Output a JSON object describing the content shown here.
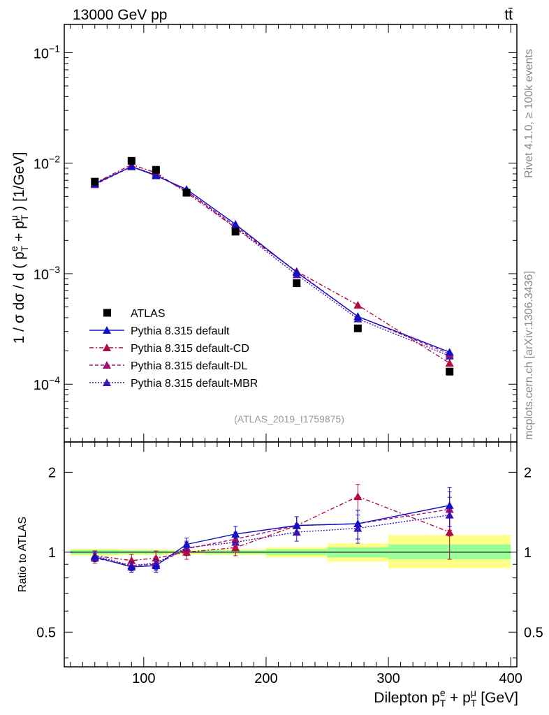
{
  "header": {
    "left_label": "13000 GeV pp",
    "right_label": "tt̄"
  },
  "side_labels": {
    "rivet": "Rivet 4.1.0, ≥ 100k events",
    "mcplots": "mcplots.cern.ch [arXiv:1306.3436]"
  },
  "analysis_tag": "(ATLAS_2019_I1759875)",
  "colors": {
    "atlas": "#000000",
    "default": "#1010c8",
    "cd": "#b40a3c",
    "dl": "#a0106e",
    "mbr": "#3c14b4",
    "band_inner": "#99ff99",
    "band_outer": "#ffff88"
  },
  "chart_data": [
    {
      "type": "line",
      "scale": "log",
      "ylabel": "1 / σ dσ / d ( p_T^e + p_T^μ ) [1/GeV]",
      "xlim": [
        35,
        405
      ],
      "ylim": [
        3e-05,
        0.18
      ],
      "yticks": [
        {
          "value": 0.1,
          "base": "10",
          "exp": "−1"
        },
        {
          "value": 0.01,
          "base": "10",
          "exp": "−2"
        },
        {
          "value": 0.001,
          "base": "10",
          "exp": "−3"
        },
        {
          "value": 0.0001,
          "base": "10",
          "exp": "−4"
        }
      ],
      "x": [
        60,
        90,
        110,
        135,
        175,
        225,
        275,
        350
      ],
      "series": [
        {
          "key": "atlas",
          "name": "ATLAS",
          "marker": "square",
          "values": [
            0.0068,
            0.0105,
            0.0087,
            0.0054,
            0.0024,
            0.00082,
            0.00032,
            0.00013
          ]
        },
        {
          "key": "default",
          "name": "Pythia 8.315 default",
          "marker": "triangle",
          "dash": "solid",
          "values": [
            0.0065,
            0.0093,
            0.0077,
            0.0058,
            0.0028,
            0.00103,
            0.00041,
            0.000195
          ]
        },
        {
          "key": "cd",
          "name": "Pythia 8.315 default-CD",
          "marker": "triangle",
          "dash": "dashdot",
          "values": [
            0.0066,
            0.0097,
            0.0082,
            0.0054,
            0.0026,
            0.00105,
            0.00052,
            0.000155
          ]
        },
        {
          "key": "dl",
          "name": "Pythia 8.315 default-DL",
          "marker": "triangle",
          "dash": "dashed",
          "values": [
            0.0064,
            0.0093,
            0.0078,
            0.0056,
            0.0027,
            0.00104,
            0.00041,
            0.000188
          ]
        },
        {
          "key": "mbr",
          "name": "Pythia 8.315 default-MBR",
          "marker": "triangle",
          "dash": "dotted",
          "values": [
            0.0066,
            0.0093,
            0.0079,
            0.0056,
            0.0026,
            0.00098,
            0.00039,
            0.00018
          ]
        }
      ]
    },
    {
      "type": "line",
      "scale": "log",
      "ylabel": "Ratio to ATLAS",
      "xlabel": "Dilepton p_T^e + p_T^μ [GeV]",
      "xlim": [
        35,
        405
      ],
      "ylim": [
        0.37,
        2.6
      ],
      "yticks": [
        {
          "value": 2,
          "label": "2"
        },
        {
          "value": 1,
          "label": "1"
        },
        {
          "value": 0.5,
          "label": "0.5"
        }
      ],
      "xticks": [
        {
          "value": 100,
          "label": "100"
        },
        {
          "value": 200,
          "label": "200"
        },
        {
          "value": 300,
          "label": "300"
        },
        {
          "value": 400,
          "label": "400"
        }
      ],
      "bands": [
        {
          "x0": 40,
          "x1": 80,
          "inner": [
            0.98,
            1.02
          ],
          "outer": [
            0.97,
            1.03
          ]
        },
        {
          "x0": 80,
          "x1": 100,
          "inner": [
            0.985,
            1.015
          ],
          "outer": [
            0.975,
            1.025
          ]
        },
        {
          "x0": 100,
          "x1": 120,
          "inner": [
            0.985,
            1.015
          ],
          "outer": [
            0.975,
            1.025
          ]
        },
        {
          "x0": 120,
          "x1": 150,
          "inner": [
            0.99,
            1.01
          ],
          "outer": [
            0.98,
            1.02
          ]
        },
        {
          "x0": 150,
          "x1": 200,
          "inner": [
            0.985,
            1.015
          ],
          "outer": [
            0.975,
            1.025
          ]
        },
        {
          "x0": 200,
          "x1": 250,
          "inner": [
            0.975,
            1.025
          ],
          "outer": [
            0.955,
            1.045
          ]
        },
        {
          "x0": 250,
          "x1": 300,
          "inner": [
            0.955,
            1.045
          ],
          "outer": [
            0.92,
            1.08
          ]
        },
        {
          "x0": 300,
          "x1": 400,
          "inner": [
            0.94,
            1.07
          ],
          "outer": [
            0.87,
            1.16
          ]
        }
      ],
      "x": [
        60,
        90,
        110,
        135,
        175,
        225,
        275,
        350
      ],
      "series": [
        {
          "key": "default",
          "name": "Pythia 8.315 default",
          "values": [
            0.96,
            0.88,
            0.89,
            1.07,
            1.17,
            1.26,
            1.28,
            1.5
          ],
          "err": [
            0.04,
            0.04,
            0.05,
            0.06,
            0.08,
            0.1,
            0.16,
            0.25
          ]
        },
        {
          "key": "cd",
          "name": "Pythia 8.315 default-CD",
          "values": [
            0.97,
            0.93,
            0.95,
            1.0,
            1.04,
            1.26,
            1.62,
            1.19
          ],
          "err": [
            0.04,
            0.05,
            0.06,
            0.06,
            0.07,
            0.1,
            0.18,
            0.25
          ]
        },
        {
          "key": "dl",
          "name": "Pythia 8.315 default-DL",
          "values": [
            0.95,
            0.89,
            0.9,
            1.03,
            1.12,
            1.26,
            1.28,
            1.45
          ],
          "err": [
            0.04,
            0.04,
            0.05,
            0.06,
            0.07,
            0.1,
            0.16,
            0.24
          ]
        },
        {
          "key": "mbr",
          "name": "Pythia 8.315 default-MBR",
          "values": [
            0.97,
            0.89,
            0.91,
            1.04,
            1.09,
            1.19,
            1.23,
            1.38
          ],
          "err": [
            0.04,
            0.04,
            0.05,
            0.06,
            0.07,
            0.09,
            0.15,
            0.23
          ]
        }
      ]
    }
  ]
}
